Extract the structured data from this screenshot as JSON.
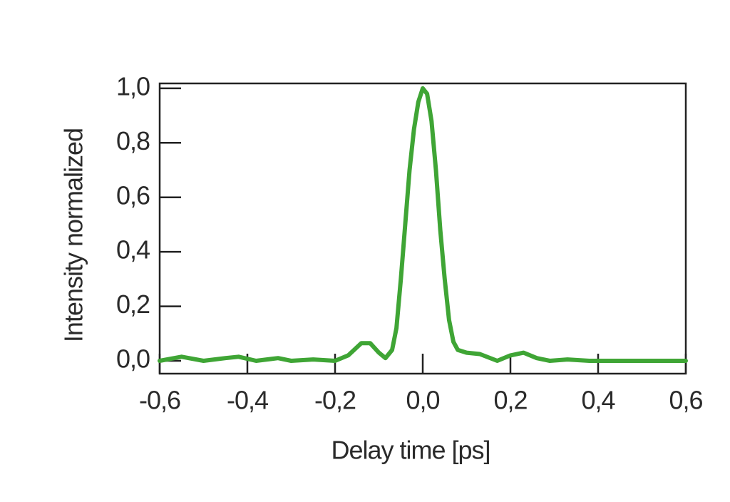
{
  "chart_data": {
    "type": "line",
    "x_label": "Delay time [ps]",
    "y_label": "Intensity normalized",
    "x": [
      -0.6,
      -0.55,
      -0.5,
      -0.45,
      -0.42,
      -0.38,
      -0.33,
      -0.3,
      -0.25,
      -0.2,
      -0.17,
      -0.14,
      -0.12,
      -0.1,
      -0.085,
      -0.07,
      -0.06,
      -0.05,
      -0.04,
      -0.03,
      -0.02,
      -0.01,
      0,
      0.01,
      0.02,
      0.03,
      0.04,
      0.05,
      0.06,
      0.07,
      0.08,
      0.1,
      0.13,
      0.17,
      0.2,
      0.23,
      0.26,
      0.29,
      0.33,
      0.38,
      0.42,
      0.45,
      0.6
    ],
    "series": [
      {
        "color": "#3fa535",
        "values": [
          0.0,
          0.015,
          0.0,
          0.01,
          0.015,
          0.0,
          0.01,
          0.0,
          0.005,
          0.0,
          0.02,
          0.065,
          0.065,
          0.03,
          0.01,
          0.04,
          0.12,
          0.3,
          0.5,
          0.7,
          0.85,
          0.95,
          1.0,
          0.98,
          0.88,
          0.7,
          0.48,
          0.3,
          0.15,
          0.07,
          0.04,
          0.03,
          0.025,
          0.0,
          0.02,
          0.03,
          0.01,
          0.0,
          0.005,
          0.0,
          0.0,
          0.0,
          0.0
        ]
      }
    ],
    "xlim": [
      -0.6,
      0.6
    ],
    "ylim": [
      -0.047,
      1.018
    ],
    "xticks": [
      {
        "value": -0.6,
        "label": "-0,6"
      },
      {
        "value": -0.4,
        "label": "-0,4"
      },
      {
        "value": -0.2,
        "label": "-0,2"
      },
      {
        "value": 0,
        "label": "0,0"
      },
      {
        "value": 0.2,
        "label": "0,2"
      },
      {
        "value": 0.4,
        "label": "0,4"
      },
      {
        "value": 0.6,
        "label": "0,6"
      }
    ],
    "yticks": [
      {
        "value": 0,
        "label": "0,0"
      },
      {
        "value": 0.2,
        "label": "0,2"
      },
      {
        "value": 0.4,
        "label": "0,4"
      },
      {
        "value": 0.6,
        "label": "0,6"
      },
      {
        "value": 0.8,
        "label": "0,8"
      },
      {
        "value": 1.0,
        "label": "1,0"
      }
    ]
  }
}
